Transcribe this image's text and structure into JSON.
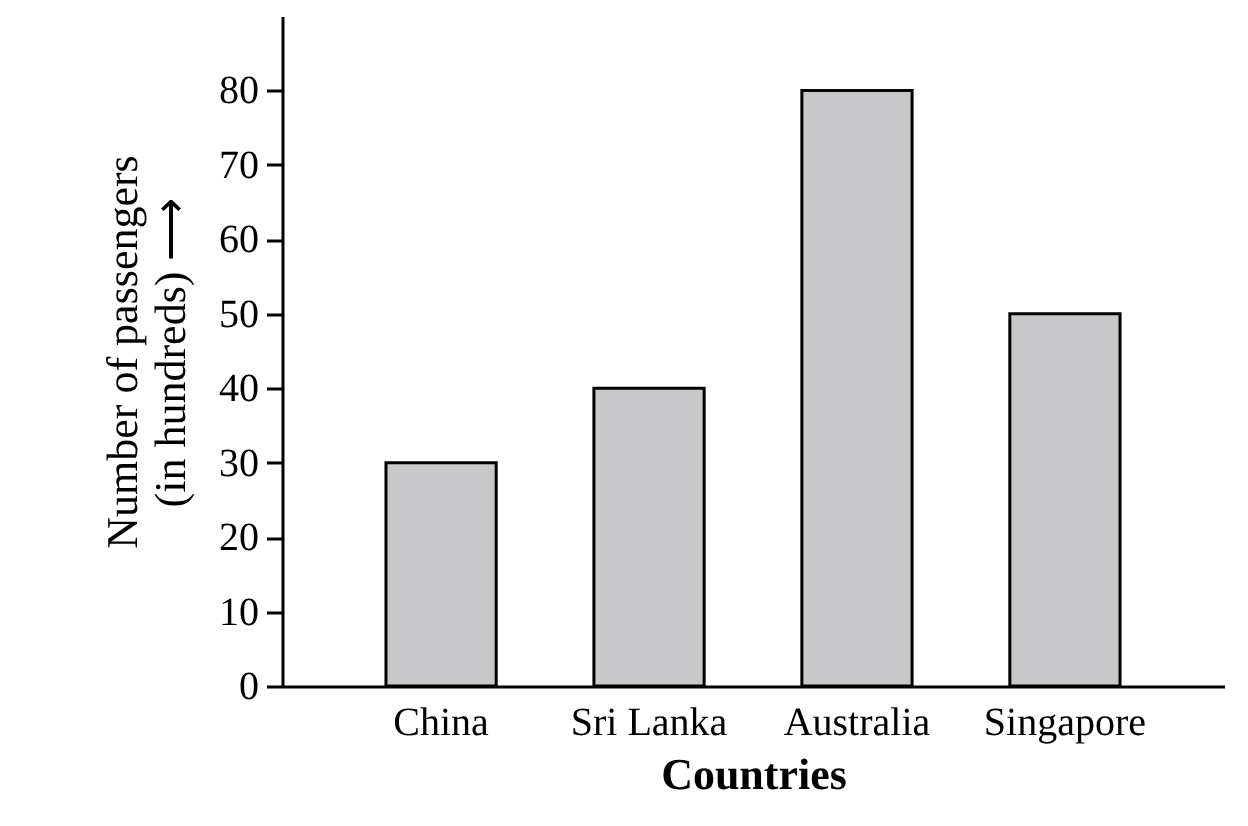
{
  "chart_data": {
    "type": "bar",
    "xlabel": "Countries",
    "ylabel": "Number of passengers\n(in hundreds) ⟶",
    "categories": [
      "China",
      "Sri Lanka",
      "Australia",
      "Singapore"
    ],
    "values": [
      30,
      40,
      80,
      50
    ],
    "color": "#c8c8ca",
    "ylim": [
      0,
      90
    ],
    "yticks": [
      0,
      10,
      20,
      30,
      40,
      50,
      60,
      70,
      80
    ],
    "grid": false
  }
}
